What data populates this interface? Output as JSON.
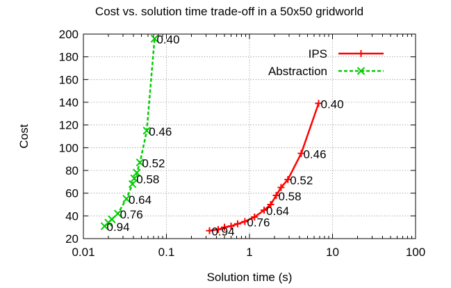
{
  "chart_data": {
    "type": "line",
    "title": "Cost vs. solution time trade-off in a 50x50 gridworld",
    "xlabel": "Solution time (s)",
    "ylabel": "Cost",
    "xscale": "log",
    "xlim": [
      0.01,
      100
    ],
    "ylim": [
      20,
      200
    ],
    "xticks": [
      0.01,
      0.1,
      1,
      10,
      100
    ],
    "xtick_labels": [
      "0.01",
      "0.1",
      "1",
      "10",
      "100"
    ],
    "yticks": [
      20,
      40,
      60,
      80,
      100,
      120,
      140,
      160,
      180,
      200
    ],
    "ytick_labels": [
      "20",
      "40",
      "60",
      "80",
      "100",
      "120",
      "140",
      "160",
      "180",
      "200"
    ],
    "grid": true,
    "legend_position": "top-right",
    "series": [
      {
        "name": "IPS",
        "color": "#ff0000",
        "line_style": "solid",
        "marker": "plus",
        "x": [
          0.33,
          0.42,
          0.5,
          0.6,
          0.72,
          0.88,
          1.15,
          1.5,
          1.8,
          2.1,
          2.4,
          2.9,
          4.2,
          6.8
        ],
        "y": [
          27,
          28,
          30,
          31,
          33,
          35,
          39,
          45,
          50,
          58,
          65,
          72,
          95,
          139
        ],
        "point_labels": [
          {
            "text": "0.40",
            "x": 6.8,
            "y": 139
          },
          {
            "text": "0.46",
            "x": 4.2,
            "y": 95
          },
          {
            "text": "0.52",
            "x": 2.9,
            "y": 72
          },
          {
            "text": "0.58",
            "x": 2.1,
            "y": 58
          },
          {
            "text": "0.64",
            "x": 1.5,
            "y": 45
          },
          {
            "text": "0.76",
            "x": 0.88,
            "y": 35
          },
          {
            "text": "0.94",
            "x": 0.33,
            "y": 27
          }
        ]
      },
      {
        "name": "Abstraction",
        "color": "#00cc00",
        "line_style": "dashed",
        "marker": "x",
        "x": [
          0.018,
          0.02,
          0.022,
          0.026,
          0.033,
          0.039,
          0.041,
          0.044,
          0.048,
          0.058,
          0.072
        ],
        "y": [
          31,
          34,
          37,
          42,
          55,
          68,
          73,
          78,
          87,
          115,
          196
        ],
        "point_labels": [
          {
            "text": "0.40",
            "x": 0.072,
            "y": 196
          },
          {
            "text": "0.46",
            "x": 0.058,
            "y": 115
          },
          {
            "text": "0.52",
            "x": 0.048,
            "y": 87
          },
          {
            "text": "0.58",
            "x": 0.041,
            "y": 73
          },
          {
            "text": "0.64",
            "x": 0.033,
            "y": 55
          },
          {
            "text": "0.76",
            "x": 0.026,
            "y": 42
          },
          {
            "text": "0.94",
            "x": 0.018,
            "y": 31
          }
        ]
      }
    ]
  }
}
